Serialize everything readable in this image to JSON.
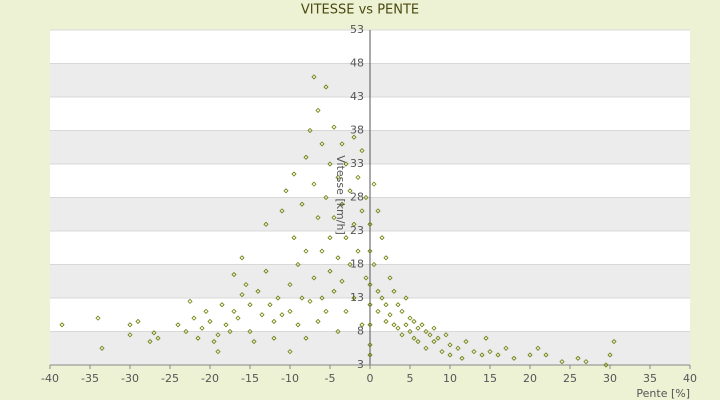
{
  "chart_data": {
    "type": "scatter",
    "title": "VITESSE vs PENTE",
    "x_label": "Pente [%]",
    "y_label": "Vitesse [km/h]",
    "color": "#6b7a00",
    "xlim": [
      -40,
      40
    ],
    "xticks": [
      -40,
      -35,
      -30,
      -25,
      -20,
      -15,
      -10,
      -5,
      0,
      5,
      10,
      15,
      20,
      25,
      30,
      35,
      40
    ],
    "ylim": [
      3,
      53
    ],
    "yticks": [
      3,
      8,
      13,
      18,
      23,
      28,
      33,
      38,
      43,
      48,
      53
    ],
    "grid": true,
    "x": [
      -38.5,
      -34,
      -33.5,
      -30,
      -30,
      -29,
      -27.5,
      -27,
      -26.5,
      -24,
      -23,
      -22,
      -22.5,
      -21.5,
      -21,
      -20.5,
      -20,
      -19.5,
      -19,
      -19,
      -18.5,
      -18,
      -17.5,
      -17,
      -17,
      -16.5,
      -16,
      -16,
      -15.5,
      -15,
      -15,
      -14.5,
      -14,
      -13.5,
      -13,
      -13,
      -12.5,
      -12,
      -12,
      -11.5,
      -11,
      -11,
      -10.5,
      -10,
      -10,
      -10,
      -9.5,
      -9.5,
      -9,
      -9,
      -8.5,
      -8.5,
      -8,
      -8,
      -8,
      -7.5,
      -7.5,
      -7,
      -7,
      -7,
      -6.5,
      -6.5,
      -6.5,
      -6,
      -6,
      -6,
      -5.5,
      -5.5,
      -5.5,
      -5,
      -5,
      -5,
      -4.5,
      -4.5,
      -4.5,
      -4,
      -4,
      -4,
      -3.5,
      -3.5,
      -3.5,
      -3,
      -3,
      -3,
      -2.5,
      -2.5,
      -2,
      -2,
      -2,
      -1.5,
      -1.5,
      -1,
      -1,
      -1,
      -0.5,
      -0.5,
      0,
      0,
      0,
      0,
      0,
      0,
      0,
      0.5,
      0.5,
      1,
      1,
      1,
      1.5,
      1.5,
      2,
      2,
      2,
      2.5,
      2.5,
      3,
      3,
      3.5,
      3.5,
      4,
      4,
      4.5,
      4.5,
      5,
      5,
      5.5,
      5.5,
      6,
      6,
      6.5,
      7,
      7,
      7.5,
      8,
      8,
      8.5,
      9,
      9.5,
      10,
      10,
      11,
      11.5,
      12,
      13,
      14,
      14.5,
      15,
      16,
      17,
      18,
      20,
      21,
      22,
      24,
      26,
      27,
      29.5,
      30,
      30.5
    ],
    "values": [
      9,
      10,
      5.5,
      9,
      7.5,
      9.5,
      6.5,
      7.8,
      7,
      9,
      8,
      10,
      12.5,
      7,
      8.5,
      11,
      9.5,
      6.5,
      7.5,
      5,
      12,
      9,
      8,
      16.5,
      11,
      10,
      19,
      13.5,
      15,
      12,
      8,
      6.5,
      14,
      10.5,
      17,
      24,
      12,
      9.5,
      7,
      13,
      26,
      10.5,
      29,
      15,
      11,
      5,
      22,
      31.5,
      18,
      9,
      13,
      27,
      34,
      20,
      7,
      38,
      12.5,
      46,
      30,
      16,
      41,
      25,
      9.5,
      36,
      20,
      13,
      44.5,
      28,
      11,
      33,
      22,
      17,
      38.5,
      25,
      14,
      31,
      19,
      8,
      36,
      27,
      15.5,
      33,
      22,
      11,
      29,
      18,
      37,
      24,
      13,
      31,
      20,
      35,
      26,
      9,
      28,
      16,
      24,
      20,
      15,
      12,
      9,
      6,
      4.5,
      30,
      18,
      26,
      14,
      11,
      22,
      13,
      19,
      12,
      9.5,
      16,
      10.5,
      14,
      9,
      12,
      8.5,
      11,
      7.5,
      13,
      9,
      10,
      8,
      9.5,
      7,
      8.5,
      6.5,
      9,
      8,
      5.5,
      7.5,
      8.5,
      6.5,
      7,
      5,
      7.5,
      6,
      4.5,
      5.5,
      4,
      6.5,
      5,
      4.5,
      7,
      5,
      4.5,
      5.5,
      4,
      4.5,
      5.5,
      4.5,
      3.5,
      4,
      3.5,
      3,
      4.5,
      6.5
    ]
  }
}
